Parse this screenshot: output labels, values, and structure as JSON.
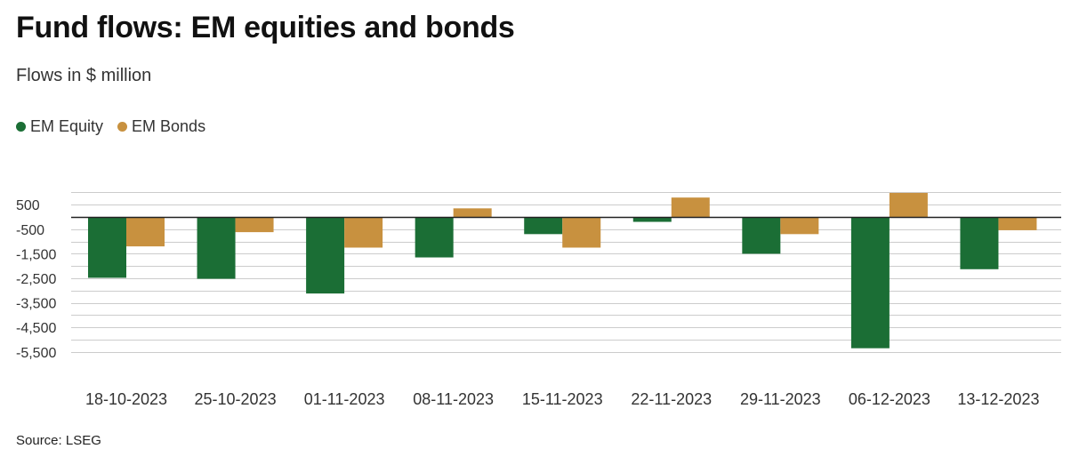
{
  "title": "Fund flows: EM equities and bonds",
  "subtitle": "Flows in $ million",
  "source": "Source: LSEG",
  "colors": {
    "equity": "#1b6e35",
    "bonds": "#c8913f",
    "grid": "#cccccc",
    "zero": "#222222"
  },
  "chart_data": {
    "type": "bar",
    "title": "Fund flows: EM equities and bonds",
    "subtitle": "Flows in $ million",
    "categories": [
      "18-10-2023",
      "25-10-2023",
      "01-11-2023",
      "08-11-2023",
      "15-11-2023",
      "22-11-2023",
      "29-11-2023",
      "06-12-2023",
      "13-12-2023"
    ],
    "series": [
      {
        "name": "EM Equity",
        "color": "#1b6e35",
        "values": [
          -2480,
          -2520,
          -3120,
          -1650,
          -700,
          -200,
          -1500,
          -5350,
          -2130
        ]
      },
      {
        "name": "EM Bonds",
        "color": "#c8913f",
        "values": [
          -1200,
          -620,
          -1250,
          350,
          -1250,
          790,
          -700,
          980,
          -540
        ]
      }
    ],
    "yticks": [
      500,
      -500,
      -1500,
      -2500,
      -3500,
      -4500,
      -5500
    ],
    "ytick_labels": [
      "500",
      "-500",
      "-1,500",
      "-2,500",
      "-3,500",
      "-4,500",
      "-5,500"
    ],
    "ylim": [
      -5500,
      1000
    ],
    "grid": true,
    "legend": "top-left"
  }
}
